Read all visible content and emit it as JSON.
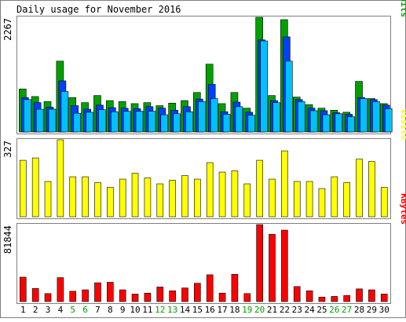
{
  "title": "Daily usage for November 2016",
  "colors": {
    "background": "#ffffff",
    "frame": "#808080",
    "hits": "#00A000",
    "files": "#0040FF",
    "pages": "#00C0FF",
    "visits": "#FFFF00",
    "kbytes": "#FF0000",
    "weekday_label": "#000000",
    "weekend_label": "#00A000"
  },
  "chart_data": [
    {
      "type": "bar",
      "panel": "hits",
      "ymax_label": "2267",
      "ylim": [
        0,
        2267
      ],
      "legend": [
        "Pages",
        "Files",
        "Hits"
      ],
      "legend_separator": "/",
      "categories": [
        "1",
        "2",
        "3",
        "4",
        "5",
        "6",
        "7",
        "8",
        "9",
        "10",
        "11",
        "12",
        "13",
        "14",
        "15",
        "16",
        "17",
        "18",
        "19",
        "20",
        "21",
        "22",
        "23",
        "24",
        "25",
        "26",
        "27",
        "28",
        "29",
        "30"
      ],
      "series": [
        {
          "name": "Hits",
          "values": [
            850,
            700,
            600,
            1400,
            680,
            580,
            720,
            620,
            600,
            560,
            580,
            520,
            570,
            620,
            780,
            1340,
            560,
            780,
            470,
            2267,
            720,
            2220,
            690,
            540,
            470,
            430,
            390,
            1000,
            660,
            560
          ]
        },
        {
          "name": "Files",
          "values": [
            680,
            580,
            490,
            1010,
            520,
            450,
            530,
            480,
            470,
            460,
            500,
            470,
            430,
            500,
            650,
            940,
            400,
            590,
            390,
            1820,
            620,
            1880,
            640,
            470,
            420,
            380,
            350,
            680,
            640,
            530
          ]
        },
        {
          "name": "Pages",
          "values": [
            640,
            450,
            450,
            800,
            370,
            390,
            440,
            400,
            410,
            410,
            410,
            340,
            360,
            400,
            600,
            660,
            350,
            500,
            330,
            1800,
            580,
            1400,
            600,
            420,
            340,
            360,
            300,
            660,
            600,
            460
          ]
        }
      ]
    },
    {
      "type": "bar",
      "panel": "visits",
      "ymax_label": "327",
      "ylim": [
        0,
        327
      ],
      "legend": [
        "Visits"
      ],
      "categories": [
        "1",
        "2",
        "3",
        "4",
        "5",
        "6",
        "7",
        "8",
        "9",
        "10",
        "11",
        "12",
        "13",
        "14",
        "15",
        "16",
        "17",
        "18",
        "19",
        "20",
        "21",
        "22",
        "23",
        "24",
        "25",
        "26",
        "27",
        "28",
        "29",
        "30"
      ],
      "series": [
        {
          "name": "Visits",
          "values": [
            240,
            250,
            150,
            327,
            170,
            170,
            145,
            125,
            160,
            185,
            165,
            140,
            155,
            175,
            160,
            230,
            190,
            195,
            140,
            240,
            160,
            280,
            150,
            150,
            120,
            170,
            145,
            245,
            235,
            125
          ]
        }
      ]
    },
    {
      "type": "bar",
      "panel": "kbytes",
      "ymax_label": "81844",
      "ylim": [
        0,
        81844
      ],
      "legend": [
        "KBytes"
      ],
      "categories": [
        "1",
        "2",
        "3",
        "4",
        "5",
        "6",
        "7",
        "8",
        "9",
        "10",
        "11",
        "12",
        "13",
        "14",
        "15",
        "16",
        "17",
        "18",
        "19",
        "20",
        "21",
        "22",
        "23",
        "24",
        "25",
        "26",
        "27",
        "28",
        "29",
        "30"
      ],
      "series": [
        {
          "name": "KBytes",
          "values": [
            26000,
            14000,
            8500,
            25500,
            11000,
            12500,
            20000,
            20500,
            12500,
            8000,
            9000,
            15500,
            11500,
            14500,
            19500,
            28500,
            9000,
            29000,
            8500,
            81844,
            71500,
            76000,
            16000,
            11500,
            4800,
            5500,
            6500,
            13500,
            12500,
            8000
          ]
        }
      ]
    }
  ],
  "x_labels": [
    {
      "text": "1",
      "weekend": false
    },
    {
      "text": "2",
      "weekend": false
    },
    {
      "text": "3",
      "weekend": false
    },
    {
      "text": "4",
      "weekend": false
    },
    {
      "text": "5",
      "weekend": true
    },
    {
      "text": "6",
      "weekend": true
    },
    {
      "text": "7",
      "weekend": false
    },
    {
      "text": "8",
      "weekend": false
    },
    {
      "text": "9",
      "weekend": false
    },
    {
      "text": "10",
      "weekend": false
    },
    {
      "text": "11",
      "weekend": false
    },
    {
      "text": "12",
      "weekend": true
    },
    {
      "text": "13",
      "weekend": true
    },
    {
      "text": "14",
      "weekend": false
    },
    {
      "text": "15",
      "weekend": false
    },
    {
      "text": "16",
      "weekend": false
    },
    {
      "text": "17",
      "weekend": false
    },
    {
      "text": "18",
      "weekend": false
    },
    {
      "text": "19",
      "weekend": true
    },
    {
      "text": "20",
      "weekend": true
    },
    {
      "text": "21",
      "weekend": false
    },
    {
      "text": "22",
      "weekend": false
    },
    {
      "text": "23",
      "weekend": false
    },
    {
      "text": "24",
      "weekend": false
    },
    {
      "text": "25",
      "weekend": false
    },
    {
      "text": "26",
      "weekend": true
    },
    {
      "text": "27",
      "weekend": true
    },
    {
      "text": "28",
      "weekend": false
    },
    {
      "text": "29",
      "weekend": false
    },
    {
      "text": "30",
      "weekend": false
    }
  ]
}
